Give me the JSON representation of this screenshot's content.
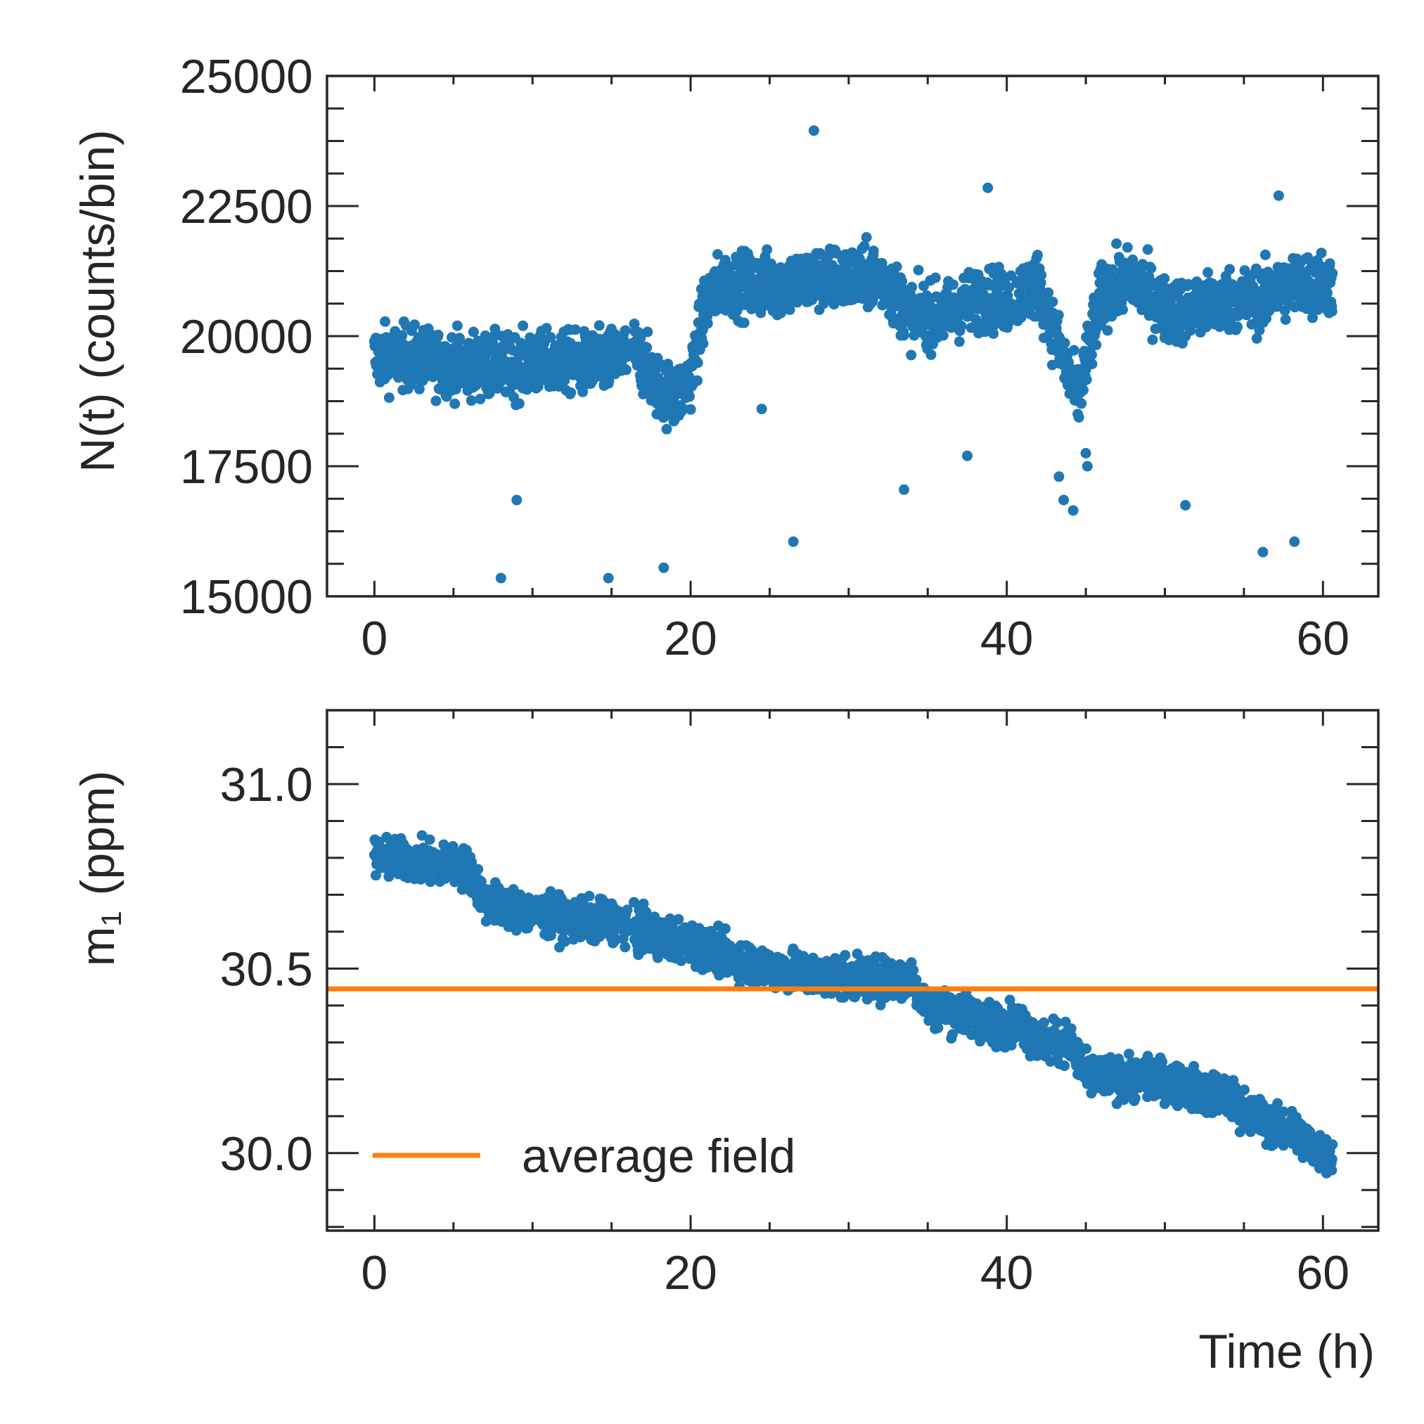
{
  "figure": {
    "xlabel": "Time (h)"
  },
  "chart_data": [
    {
      "type": "scatter",
      "id": "top",
      "ylabel": "N(t) (counts/bin)",
      "xlim": [
        -3,
        63.5
      ],
      "ylim": [
        15000,
        25000
      ],
      "xticks": [
        0,
        20,
        40,
        60
      ],
      "xtick_labels": [
        "0",
        "20",
        "40",
        "60"
      ],
      "x_minor_step": 5,
      "yticks": [
        15000,
        17500,
        20000,
        22500,
        25000
      ],
      "ytick_labels": [
        "15000",
        "17500",
        "20000",
        "22500",
        "25000"
      ],
      "y_minor_step": 625,
      "color": "#1f77b4",
      "series": [
        {
          "name": "N(t)",
          "approx_points": [
            [
              0,
              19600
            ],
            [
              2,
              19600
            ],
            [
              4,
              19500
            ],
            [
              6,
              19450
            ],
            [
              8,
              19400
            ],
            [
              10,
              19450
            ],
            [
              12,
              19500
            ],
            [
              14,
              19450
            ],
            [
              15.5,
              19600
            ],
            [
              16.5,
              19700
            ],
            [
              18,
              19000
            ],
            [
              19,
              18800
            ],
            [
              20,
              19200
            ],
            [
              21,
              20700
            ],
            [
              22,
              21000
            ],
            [
              24,
              21000
            ],
            [
              26,
              21000
            ],
            [
              28,
              21100
            ],
            [
              30,
              21100
            ],
            [
              32,
              21150
            ],
            [
              34,
              20400
            ],
            [
              36,
              20400
            ],
            [
              38,
              20700
            ],
            [
              40,
              20700
            ],
            [
              42,
              21000
            ],
            [
              43.5,
              19600
            ],
            [
              44.5,
              18800
            ],
            [
              46,
              20800
            ],
            [
              48,
              21100
            ],
            [
              50,
              20500
            ],
            [
              52,
              20500
            ],
            [
              54,
              20700
            ],
            [
              56,
              20700
            ],
            [
              58,
              21000
            ],
            [
              60,
              21000
            ]
          ],
          "outliers": [
            [
              8,
              15350
            ],
            [
              9,
              16850
            ],
            [
              14.8,
              15350
            ],
            [
              18.3,
              15550
            ],
            [
              24.5,
              18600
            ],
            [
              26.5,
              16050
            ],
            [
              27.8,
              23950
            ],
            [
              33.5,
              17050
            ],
            [
              37.5,
              17700
            ],
            [
              38.8,
              22850
            ],
            [
              43.3,
              17300
            ],
            [
              43.6,
              16850
            ],
            [
              44.2,
              16650
            ],
            [
              45,
              17750
            ],
            [
              45.1,
              17500
            ],
            [
              51.3,
              16750
            ],
            [
              56.2,
              15850
            ],
            [
              58.2,
              16050
            ],
            [
              57.2,
              22700
            ]
          ]
        }
      ]
    },
    {
      "type": "scatter",
      "id": "bottom",
      "ylabel": "m",
      "ylabel_sub": "1",
      "ylabel_unit": "(ppm)",
      "xlim": [
        -3,
        63.5
      ],
      "ylim": [
        29.79,
        31.2
      ],
      "xticks": [
        0,
        20,
        40,
        60
      ],
      "xtick_labels": [
        "0",
        "20",
        "40",
        "60"
      ],
      "x_minor_step": 5,
      "yticks": [
        30.0,
        30.5,
        31.0
      ],
      "ytick_labels": [
        "30.0",
        "30.5",
        "31.0"
      ],
      "y_minor_step": 0.1,
      "color": "#1f77b4",
      "series": [
        {
          "name": "m1",
          "approx_points": [
            [
              0,
              30.8
            ],
            [
              3,
              30.79
            ],
            [
              6,
              30.77
            ],
            [
              7,
              30.68
            ],
            [
              10,
              30.65
            ],
            [
              13,
              30.63
            ],
            [
              15.5,
              30.63
            ],
            [
              16.5,
              30.6
            ],
            [
              20,
              30.57
            ],
            [
              24,
              30.51
            ],
            [
              28,
              30.48
            ],
            [
              32,
              30.47
            ],
            [
              34,
              30.47
            ],
            [
              35,
              30.4
            ],
            [
              38,
              30.37
            ],
            [
              39,
              30.35
            ],
            [
              41,
              30.35
            ],
            [
              42,
              30.3
            ],
            [
              44,
              30.3
            ],
            [
              45,
              30.21
            ],
            [
              48,
              30.2
            ],
            [
              50,
              30.2
            ],
            [
              52,
              30.17
            ],
            [
              54,
              30.15
            ],
            [
              56,
              30.09
            ],
            [
              58,
              30.06
            ],
            [
              60,
              30.0
            ]
          ],
          "outliers": []
        }
      ],
      "hline": {
        "y": 30.445,
        "color": "#ff7f0e",
        "label": "average field"
      },
      "legend": {
        "label": "average field",
        "loc": "lower-left"
      }
    }
  ]
}
